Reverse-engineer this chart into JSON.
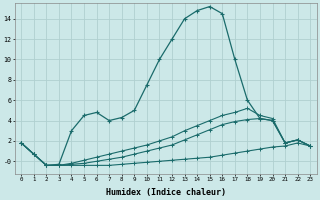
{
  "xlabel": "Humidex (Indice chaleur)",
  "bg_color": "#cce8e8",
  "grid_color": "#b0d0d0",
  "line_color": "#1a6b6b",
  "xlim": [
    -0.5,
    23.5
  ],
  "ylim": [
    -1.2,
    15.5
  ],
  "yticks": [
    0,
    2,
    4,
    6,
    8,
    10,
    12,
    14
  ],
  "ytick_labels": [
    "-0",
    "2",
    "4",
    "6",
    "8",
    "10",
    "12",
    "14"
  ],
  "xticks": [
    0,
    1,
    2,
    3,
    4,
    5,
    6,
    7,
    8,
    9,
    10,
    11,
    12,
    13,
    14,
    15,
    16,
    17,
    18,
    19,
    20,
    21,
    22,
    23
  ],
  "series1": [
    1.8,
    0.7,
    -0.4,
    -0.3,
    3.0,
    4.5,
    4.8,
    4.0,
    4.3,
    5.0,
    7.5,
    10.0,
    12.0,
    14.0,
    14.8,
    15.2,
    14.5,
    10.0,
    6.0,
    4.2,
    4.0,
    1.8,
    2.1,
    1.5
  ],
  "series2": [
    1.8,
    0.7,
    -0.4,
    -0.4,
    -0.4,
    -0.4,
    -0.4,
    -0.4,
    -0.3,
    -0.2,
    -0.1,
    0.0,
    0.1,
    0.2,
    0.3,
    0.4,
    0.6,
    0.8,
    1.0,
    1.2,
    1.4,
    1.5,
    1.8,
    1.5
  ],
  "series3": [
    1.8,
    0.7,
    -0.4,
    -0.4,
    -0.3,
    -0.2,
    0.0,
    0.2,
    0.4,
    0.7,
    1.0,
    1.3,
    1.6,
    2.1,
    2.6,
    3.1,
    3.6,
    3.9,
    4.1,
    4.2,
    4.0,
    1.8,
    2.1,
    1.5
  ],
  "series4": [
    1.8,
    0.7,
    -0.4,
    -0.4,
    -0.2,
    0.1,
    0.4,
    0.7,
    1.0,
    1.3,
    1.6,
    2.0,
    2.4,
    3.0,
    3.5,
    4.0,
    4.5,
    4.8,
    5.2,
    4.5,
    4.2,
    1.8,
    2.1,
    1.5
  ]
}
